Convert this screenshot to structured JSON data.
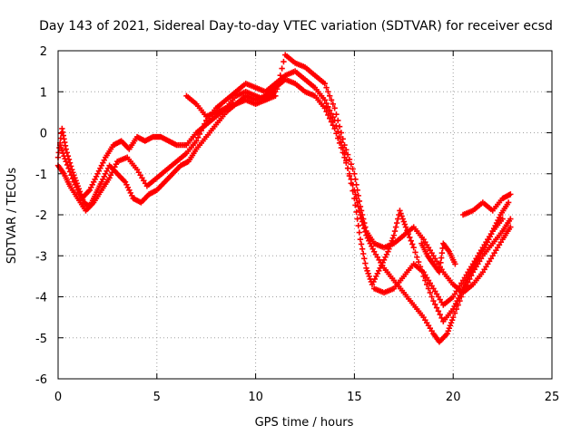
{
  "chart_data": {
    "type": "scatter",
    "title": "Day 143 of 2021, Sidereal Day-to-day VTEC variation (SDTVAR) for receiver ecsd",
    "xlabel": "GPS time / hours",
    "ylabel": "SDTVAR / TECUs",
    "xlim": [
      0,
      25
    ],
    "ylim": [
      -6,
      2
    ],
    "xticks": [
      "0",
      "5",
      "10",
      "15",
      "20",
      "25"
    ],
    "yticks": [
      "-6",
      "-5",
      "-4",
      "-3",
      "-2",
      "-1",
      "0",
      "1",
      "2"
    ],
    "grid": true,
    "marker": "+",
    "color": "#ff0000",
    "series": [
      {
        "points": [
          [
            0.0,
            -0.6
          ],
          [
            0.2,
            0.1
          ],
          [
            0.4,
            -0.4
          ],
          [
            0.7,
            -0.9
          ],
          [
            1.0,
            -1.3
          ],
          [
            1.3,
            -1.7
          ],
          [
            1.6,
            -1.8
          ],
          [
            1.9,
            -1.5
          ],
          [
            2.2,
            -1.2
          ],
          [
            2.6,
            -0.8
          ],
          [
            3.0,
            -1.0
          ],
          [
            3.4,
            -1.2
          ],
          [
            3.8,
            -1.6
          ],
          [
            4.2,
            -1.7
          ],
          [
            4.6,
            -1.5
          ],
          [
            5.0,
            -1.4
          ],
          [
            5.4,
            -1.2
          ],
          [
            5.8,
            -1.0
          ],
          [
            6.2,
            -0.8
          ],
          [
            6.6,
            -0.7
          ],
          [
            7.0,
            -0.4
          ],
          [
            7.5,
            -0.1
          ],
          [
            8.0,
            0.2
          ],
          [
            8.5,
            0.5
          ],
          [
            9.0,
            0.7
          ],
          [
            9.5,
            0.9
          ],
          [
            10.0,
            0.8
          ],
          [
            10.5,
            0.9
          ],
          [
            11.0,
            1.1
          ],
          [
            11.5,
            1.3
          ],
          [
            12.0,
            1.2
          ],
          [
            12.5,
            1.0
          ],
          [
            13.0,
            0.9
          ],
          [
            13.5,
            0.6
          ],
          [
            14.0,
            0.1
          ],
          [
            14.5,
            -0.6
          ],
          [
            15.0,
            -1.4
          ],
          [
            15.3,
            -2.0
          ],
          [
            15.6,
            -2.5
          ],
          [
            16.0,
            -2.9
          ],
          [
            16.5,
            -3.3
          ],
          [
            17.0,
            -3.6
          ],
          [
            17.5,
            -3.9
          ],
          [
            18.0,
            -4.2
          ],
          [
            18.5,
            -4.5
          ],
          [
            19.0,
            -4.9
          ],
          [
            19.3,
            -5.1
          ],
          [
            19.7,
            -4.9
          ],
          [
            20.0,
            -4.5
          ],
          [
            20.5,
            -3.9
          ],
          [
            21.0,
            -3.4
          ],
          [
            21.5,
            -3.0
          ],
          [
            22.0,
            -2.7
          ],
          [
            22.5,
            -2.4
          ],
          [
            22.9,
            -2.1
          ]
        ]
      },
      {
        "points": [
          [
            0.1,
            -0.3
          ],
          [
            0.4,
            -0.7
          ],
          [
            0.8,
            -1.2
          ],
          [
            1.2,
            -1.6
          ],
          [
            1.6,
            -1.4
          ],
          [
            2.0,
            -1.0
          ],
          [
            2.4,
            -0.6
          ],
          [
            2.8,
            -0.3
          ],
          [
            3.2,
            -0.2
          ],
          [
            3.6,
            -0.4
          ],
          [
            4.0,
            -0.1
          ],
          [
            4.4,
            -0.2
          ],
          [
            4.8,
            -0.1
          ],
          [
            5.2,
            -0.1
          ],
          [
            5.6,
            -0.2
          ],
          [
            6.0,
            -0.3
          ],
          [
            6.5,
            -0.3
          ],
          [
            7.0,
            0.0
          ],
          [
            7.5,
            0.2
          ],
          [
            8.0,
            0.4
          ],
          [
            8.5,
            0.6
          ],
          [
            9.0,
            0.9
          ],
          [
            9.5,
            1.0
          ],
          [
            10.0,
            0.9
          ],
          [
            10.5,
            0.8
          ],
          [
            11.0,
            0.9
          ],
          [
            11.5,
            1.9
          ],
          [
            12.0,
            1.7
          ],
          [
            12.5,
            1.6
          ],
          [
            13.0,
            1.4
          ],
          [
            13.5,
            1.2
          ],
          [
            14.0,
            0.6
          ],
          [
            14.5,
            -0.3
          ],
          [
            15.0,
            -1.0
          ],
          [
            15.3,
            -1.8
          ],
          [
            15.6,
            -2.4
          ],
          [
            16.0,
            -2.7
          ],
          [
            16.5,
            -2.8
          ],
          [
            17.0,
            -2.7
          ],
          [
            17.5,
            -2.5
          ],
          [
            18.0,
            -2.3
          ],
          [
            18.5,
            -2.6
          ],
          [
            19.0,
            -3.0
          ],
          [
            19.5,
            -3.4
          ],
          [
            20.0,
            -3.7
          ],
          [
            20.5,
            -3.9
          ],
          [
            21.0,
            -3.7
          ],
          [
            21.5,
            -3.4
          ],
          [
            22.0,
            -3.0
          ],
          [
            22.5,
            -2.6
          ],
          [
            22.9,
            -2.3
          ]
        ]
      },
      {
        "points": [
          [
            0.0,
            -0.8
          ],
          [
            0.3,
            -1.0
          ],
          [
            0.6,
            -1.3
          ],
          [
            1.0,
            -1.6
          ],
          [
            1.4,
            -1.9
          ],
          [
            1.8,
            -1.7
          ],
          [
            2.2,
            -1.4
          ],
          [
            2.6,
            -1.1
          ],
          [
            3.0,
            -0.7
          ],
          [
            3.5,
            -0.6
          ],
          [
            4.0,
            -0.9
          ],
          [
            4.5,
            -1.3
          ],
          [
            5.0,
            -1.1
          ],
          [
            5.5,
            -0.9
          ],
          [
            6.0,
            -0.7
          ],
          [
            6.5,
            -0.5
          ],
          [
            7.0,
            -0.2
          ],
          [
            7.5,
            0.3
          ],
          [
            8.0,
            0.6
          ],
          [
            8.5,
            0.8
          ],
          [
            9.0,
            1.0
          ],
          [
            9.5,
            1.2
          ],
          [
            10.0,
            1.1
          ],
          [
            10.5,
            1.0
          ],
          [
            11.0,
            1.2
          ],
          [
            11.5,
            1.4
          ],
          [
            12.0,
            1.5
          ],
          [
            12.5,
            1.3
          ],
          [
            13.0,
            1.1
          ],
          [
            13.5,
            0.8
          ],
          [
            14.0,
            0.3
          ],
          [
            14.5,
            -0.5
          ],
          [
            15.0,
            -1.6
          ],
          [
            15.3,
            -2.6
          ],
          [
            15.6,
            -3.3
          ],
          [
            15.9,
            -3.7
          ],
          [
            16.3,
            -3.3
          ],
          [
            16.7,
            -2.9
          ],
          [
            17.0,
            -2.5
          ],
          [
            17.3,
            -1.9
          ],
          [
            17.6,
            -2.3
          ],
          [
            18.0,
            -2.8
          ],
          [
            18.5,
            -3.5
          ],
          [
            19.0,
            -4.1
          ],
          [
            19.5,
            -4.6
          ],
          [
            20.0,
            -4.3
          ],
          [
            20.4,
            -3.9
          ],
          [
            20.8,
            -3.5
          ],
          [
            21.2,
            -3.1
          ],
          [
            21.6,
            -2.8
          ],
          [
            22.0,
            -2.4
          ],
          [
            22.4,
            -2.0
          ],
          [
            22.8,
            -1.7
          ]
        ]
      },
      {
        "points": [
          [
            6.5,
            0.9
          ],
          [
            7.0,
            0.7
          ],
          [
            7.5,
            0.4
          ],
          [
            8.0,
            0.5
          ],
          [
            8.5,
            0.6
          ],
          [
            9.0,
            0.7
          ],
          [
            9.5,
            0.8
          ],
          [
            10.0,
            0.7
          ],
          [
            10.5,
            0.8
          ],
          [
            11.0,
            1.0
          ]
        ]
      },
      {
        "points": [
          [
            16.0,
            -3.8
          ],
          [
            16.5,
            -3.9
          ],
          [
            17.0,
            -3.8
          ],
          [
            17.5,
            -3.5
          ],
          [
            18.0,
            -3.2
          ],
          [
            18.5,
            -3.4
          ],
          [
            19.0,
            -3.8
          ],
          [
            19.5,
            -4.2
          ],
          [
            20.0,
            -4.0
          ],
          [
            20.5,
            -3.6
          ],
          [
            21.0,
            -3.2
          ],
          [
            21.5,
            -2.8
          ],
          [
            22.0,
            -2.4
          ],
          [
            22.5,
            -2.1
          ]
        ]
      },
      {
        "points": [
          [
            20.5,
            -2.0
          ],
          [
            21.0,
            -1.9
          ],
          [
            21.5,
            -1.7
          ],
          [
            22.0,
            -1.9
          ],
          [
            22.5,
            -1.6
          ],
          [
            22.9,
            -1.5
          ]
        ]
      },
      {
        "points": [
          [
            18.4,
            -2.7
          ],
          [
            18.7,
            -3.0
          ],
          [
            19.0,
            -3.2
          ],
          [
            19.3,
            -3.4
          ],
          [
            19.5,
            -2.7
          ],
          [
            19.8,
            -2.9
          ],
          [
            20.1,
            -3.2
          ]
        ]
      }
    ]
  }
}
